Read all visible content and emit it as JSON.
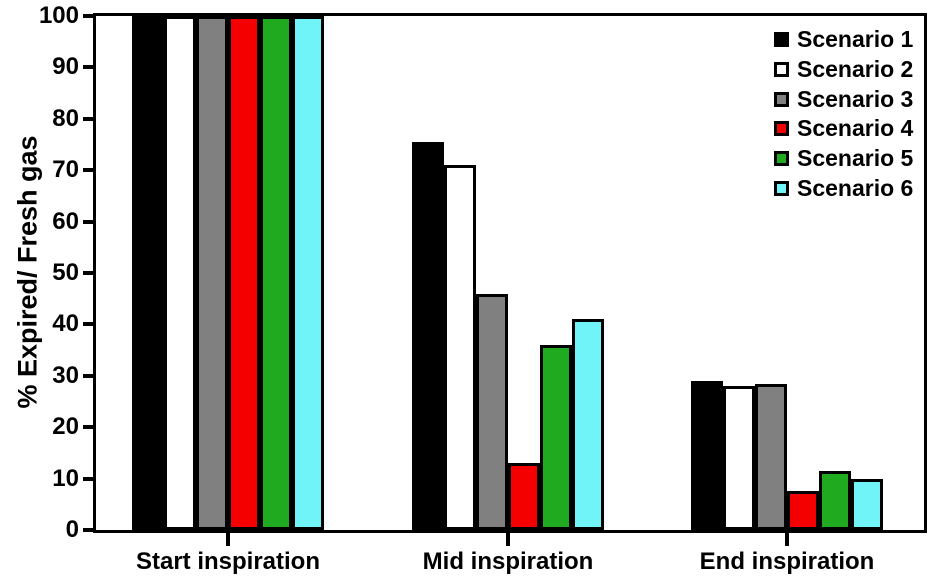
{
  "figure": {
    "background": "#FFFFFF",
    "frame_color": "#000000",
    "bar_border_color": "#000000"
  },
  "chart_data": {
    "type": "bar",
    "title": "",
    "xlabel": "",
    "ylabel": "% Expired/ Fresh gas",
    "ylim": [
      0,
      100
    ],
    "ytick_step": 10,
    "yticks": [
      0,
      10,
      20,
      30,
      40,
      50,
      60,
      70,
      80,
      90,
      100
    ],
    "grid": false,
    "legend_position": "top-right-inside",
    "categories": [
      "Start inspiration",
      "Mid inspiration",
      "End inspiration"
    ],
    "series": [
      {
        "name": "Scenario 1",
        "color": "#000000",
        "values": [
          100,
          75.5,
          29
        ]
      },
      {
        "name": "Scenario 2",
        "color": "#FFFFFF",
        "values": [
          100,
          71,
          28
        ]
      },
      {
        "name": "Scenario 3",
        "color": "#808080",
        "values": [
          100,
          46,
          28.5
        ]
      },
      {
        "name": "Scenario 4",
        "color": "#F40000",
        "values": [
          100,
          13,
          7.5
        ]
      },
      {
        "name": "Scenario 5",
        "color": "#1FAA1F",
        "values": [
          100,
          36,
          11.5
        ]
      },
      {
        "name": "Scenario 6",
        "color": "#70F4F8",
        "values": [
          100,
          41,
          10
        ]
      }
    ]
  }
}
